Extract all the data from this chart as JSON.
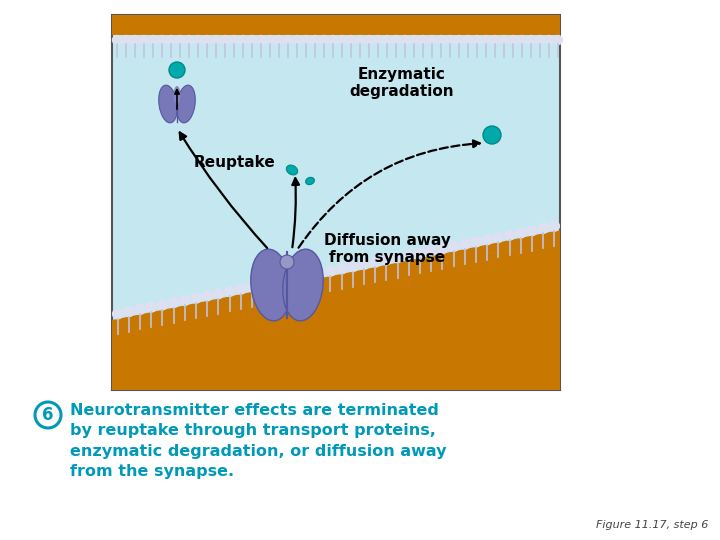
{
  "background_color": "#ffffff",
  "image_bg_color": "#c5e8f0",
  "image_border_color": "#555555",
  "orange_color": "#c87800",
  "purple_color": "#7878b8",
  "purple_dark": "#5558a0",
  "teal_color": "#00aaaa",
  "teal_dark": "#008888",
  "caption_color": "#009ab8",
  "figure_caption": "Figure 11.17, step 6",
  "label_enzymatic": "Enzymatic\ndegradation",
  "label_reuptake": "Reuptake",
  "label_diffusion": "Diffusion away\nfrom synapse",
  "caption_line1": "Neurotransmitter effects are terminated",
  "caption_line2": "by reuptake through transport proteins,",
  "caption_line3": "enzymatic degradation, or diffusion away",
  "caption_line4": "from the synapse.",
  "circle_number": "6",
  "bx0": 112,
  "by0": 15,
  "bx1": 560,
  "by1": 390
}
